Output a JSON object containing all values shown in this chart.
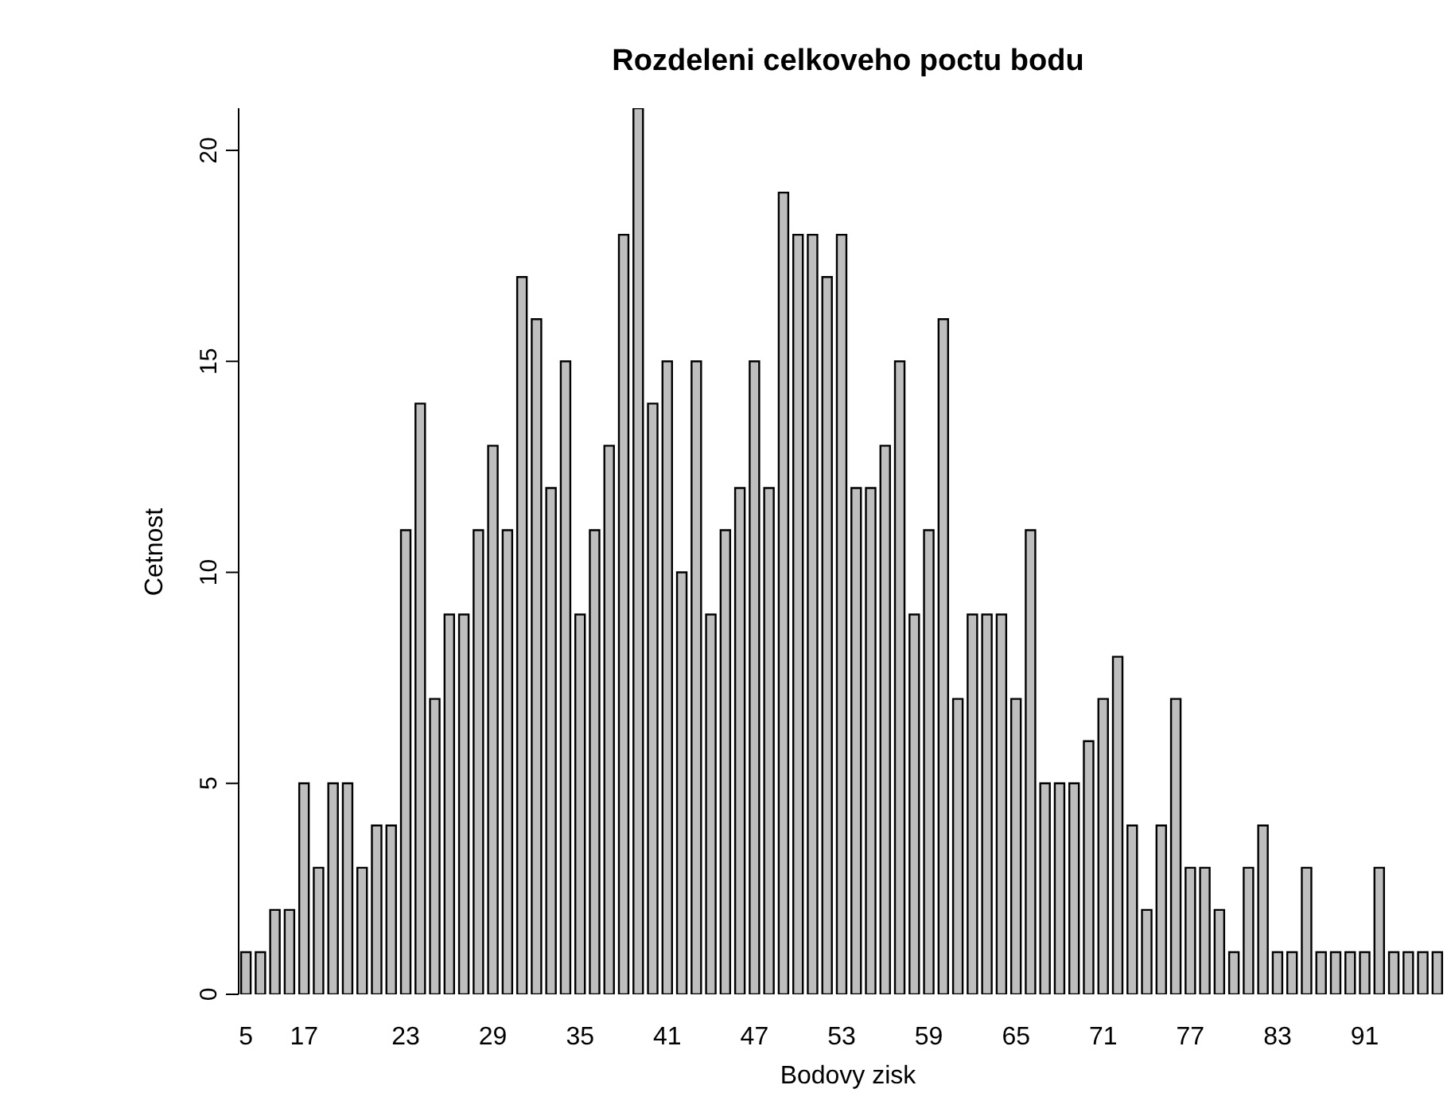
{
  "chart_data": {
    "type": "bar",
    "title": "Rozdeleni celkoveho poctu bodu",
    "xlabel": "Bodovy zisk",
    "ylabel": "Cetnost",
    "categories": [
      "5",
      null,
      null,
      null,
      "17",
      null,
      null,
      null,
      null,
      null,
      null,
      "23",
      null,
      null,
      null,
      null,
      null,
      "29",
      null,
      null,
      null,
      null,
      null,
      "35",
      null,
      null,
      null,
      null,
      null,
      "41",
      null,
      null,
      null,
      null,
      null,
      "47",
      null,
      null,
      null,
      null,
      null,
      "53",
      null,
      null,
      null,
      null,
      null,
      "59",
      null,
      null,
      null,
      null,
      null,
      "65",
      null,
      null,
      null,
      null,
      null,
      "71",
      null,
      null,
      null,
      null,
      null,
      "77",
      null,
      null,
      null,
      null,
      null,
      "83",
      null,
      null,
      null,
      null,
      null,
      "91",
      null,
      null,
      null,
      null,
      null
    ],
    "values": [
      1,
      1,
      2,
      2,
      5,
      3,
      5,
      5,
      3,
      4,
      4,
      11,
      14,
      7,
      9,
      9,
      11,
      13,
      11,
      17,
      16,
      12,
      15,
      9,
      11,
      13,
      18,
      21,
      14,
      15,
      10,
      15,
      9,
      11,
      12,
      15,
      12,
      19,
      18,
      18,
      17,
      18,
      12,
      12,
      13,
      15,
      9,
      11,
      16,
      7,
      9,
      9,
      9,
      7,
      11,
      5,
      5,
      5,
      6,
      7,
      8,
      4,
      2,
      4,
      7,
      3,
      3,
      2,
      1,
      3,
      4,
      1,
      1,
      3,
      1,
      1,
      1,
      1,
      3,
      1,
      1,
      1,
      1
    ],
    "color": "#bebebe",
    "ylim": [
      0,
      21
    ],
    "yticks": [
      0,
      5,
      10,
      15,
      20
    ],
    "grid": false,
    "legend": false
  }
}
